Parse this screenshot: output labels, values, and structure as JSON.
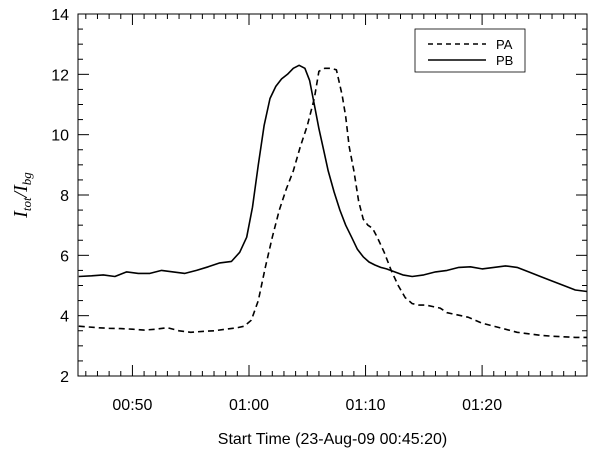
{
  "chart_data": {
    "type": "line",
    "title": "",
    "xlabel": "Start Time (23-Aug-09 00:45:20)",
    "ylabel": {
      "main1": "I",
      "sub1": "tot",
      "slash": "/",
      "main2": "I",
      "sub2": "bg"
    },
    "x_unit": "minutes",
    "xlim": [
      45.33,
      89.0
    ],
    "ylim": [
      2,
      14
    ],
    "x_ticks": [
      {
        "value": 50,
        "label": "00:50"
      },
      {
        "value": 60,
        "label": "01:00"
      },
      {
        "value": 70,
        "label": "01:10"
      },
      {
        "value": 80,
        "label": "01:20"
      }
    ],
    "y_ticks": [
      {
        "value": 2,
        "label": "2"
      },
      {
        "value": 4,
        "label": "4"
      },
      {
        "value": 6,
        "label": "6"
      },
      {
        "value": 8,
        "label": "8"
      },
      {
        "value": 10,
        "label": "10"
      },
      {
        "value": 12,
        "label": "12"
      },
      {
        "value": 14,
        "label": "14"
      }
    ],
    "grid": false,
    "legend": "top-right",
    "series": [
      {
        "name": "PA",
        "style": "dashed",
        "color": "#000000",
        "x": [
          45.4,
          47,
          48,
          49,
          50,
          51,
          52,
          53,
          54,
          55,
          56,
          57,
          58,
          59,
          59.6,
          60.2,
          60.8,
          61.4,
          62,
          62.6,
          63.2,
          63.8,
          64.4,
          65,
          65.6,
          66,
          66.5,
          67,
          67.5,
          68,
          68.3,
          68.6,
          69,
          69.4,
          69.8,
          70.2,
          70.6,
          71,
          71.6,
          72.2,
          72.8,
          73.4,
          74,
          74.6,
          75.2,
          75.8,
          76.4,
          77,
          77.6,
          78.2,
          78.8,
          79.4,
          80,
          81,
          82,
          83,
          84,
          85,
          86,
          87,
          88,
          89
        ],
        "y": [
          3.65,
          3.6,
          3.58,
          3.57,
          3.55,
          3.52,
          3.55,
          3.6,
          3.5,
          3.45,
          3.48,
          3.5,
          3.55,
          3.6,
          3.65,
          3.85,
          4.5,
          5.6,
          6.6,
          7.5,
          8.2,
          8.8,
          9.6,
          10.3,
          11.2,
          12.1,
          12.2,
          12.2,
          12.15,
          11.3,
          10.6,
          9.6,
          8.8,
          7.8,
          7.2,
          7.0,
          6.9,
          6.6,
          6.1,
          5.5,
          5.0,
          4.6,
          4.4,
          4.35,
          4.35,
          4.3,
          4.25,
          4.1,
          4.05,
          4.0,
          3.95,
          3.85,
          3.75,
          3.65,
          3.55,
          3.45,
          3.4,
          3.35,
          3.32,
          3.3,
          3.28,
          3.28
        ]
      },
      {
        "name": "PB",
        "style": "solid",
        "color": "#000000",
        "x": [
          45.4,
          46.5,
          47.5,
          48.5,
          49.5,
          50.5,
          51.5,
          52.5,
          53.5,
          54.5,
          55.5,
          56.5,
          57.5,
          58.5,
          59.2,
          59.8,
          60.3,
          60.8,
          61.3,
          61.8,
          62.3,
          62.8,
          63.3,
          63.8,
          64.3,
          64.8,
          65.2,
          65.6,
          66,
          66.4,
          66.8,
          67.3,
          67.8,
          68.3,
          68.8,
          69.3,
          69.8,
          70.3,
          70.8,
          71.3,
          71.8,
          72.5,
          73.2,
          74,
          75,
          76,
          77,
          78,
          79,
          80,
          81,
          82,
          83,
          84,
          85,
          86,
          87,
          88,
          89
        ],
        "y": [
          5.3,
          5.32,
          5.35,
          5.3,
          5.45,
          5.4,
          5.4,
          5.5,
          5.45,
          5.4,
          5.5,
          5.62,
          5.75,
          5.8,
          6.1,
          6.6,
          7.6,
          9.0,
          10.3,
          11.2,
          11.6,
          11.85,
          12.0,
          12.2,
          12.3,
          12.2,
          11.8,
          11.0,
          10.2,
          9.5,
          8.8,
          8.1,
          7.5,
          7.0,
          6.6,
          6.2,
          5.95,
          5.78,
          5.68,
          5.6,
          5.55,
          5.45,
          5.35,
          5.3,
          5.35,
          5.45,
          5.5,
          5.6,
          5.62,
          5.55,
          5.6,
          5.65,
          5.6,
          5.45,
          5.3,
          5.15,
          5.0,
          4.85,
          4.8
        ]
      }
    ]
  }
}
